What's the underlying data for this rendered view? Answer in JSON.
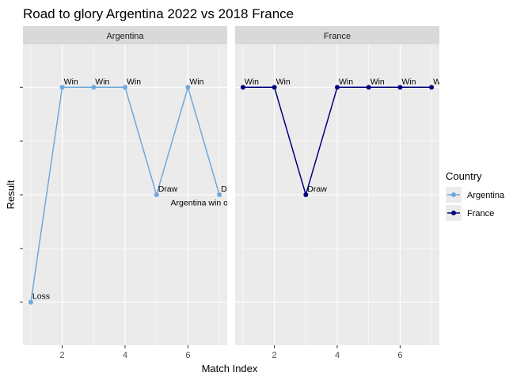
{
  "chart_data": {
    "type": "line",
    "title": "Road to glory Argentina 2022 vs 2018 France",
    "xlabel": "Match Index",
    "ylabel": "Result",
    "xlim": [
      0.75,
      7.25
    ],
    "x_ticks": [
      2,
      4,
      6
    ],
    "result_levels": [
      "Loss",
      "Draw",
      "Win"
    ],
    "ylim": [
      0.6,
      3.4
    ],
    "legend": {
      "title": "Country",
      "position": "right"
    },
    "panels": [
      {
        "strip": "Argentina",
        "series": {
          "name": "Argentina",
          "color": "#6fa8dc",
          "x": [
            1,
            2,
            3,
            4,
            5,
            6,
            7
          ],
          "results": [
            "Loss",
            "Win",
            "Win",
            "Win",
            "Draw",
            "Win",
            "Draw"
          ],
          "labels": [
            "Loss",
            "Win",
            "Win",
            "Win",
            "Draw",
            "Win",
            "Dr"
          ]
        },
        "annotation": {
          "text": "Argentina win o",
          "x": 5.45,
          "y": 1.93
        }
      },
      {
        "strip": "France",
        "series": {
          "name": "France",
          "color": "#000080",
          "x": [
            1,
            2,
            3,
            4,
            5,
            6,
            7
          ],
          "results": [
            "Win",
            "Win",
            "Draw",
            "Win",
            "Win",
            "Win",
            "Win"
          ],
          "labels": [
            "Win",
            "Win",
            "Draw",
            "Win",
            "Win",
            "Win",
            "W"
          ]
        }
      }
    ]
  }
}
